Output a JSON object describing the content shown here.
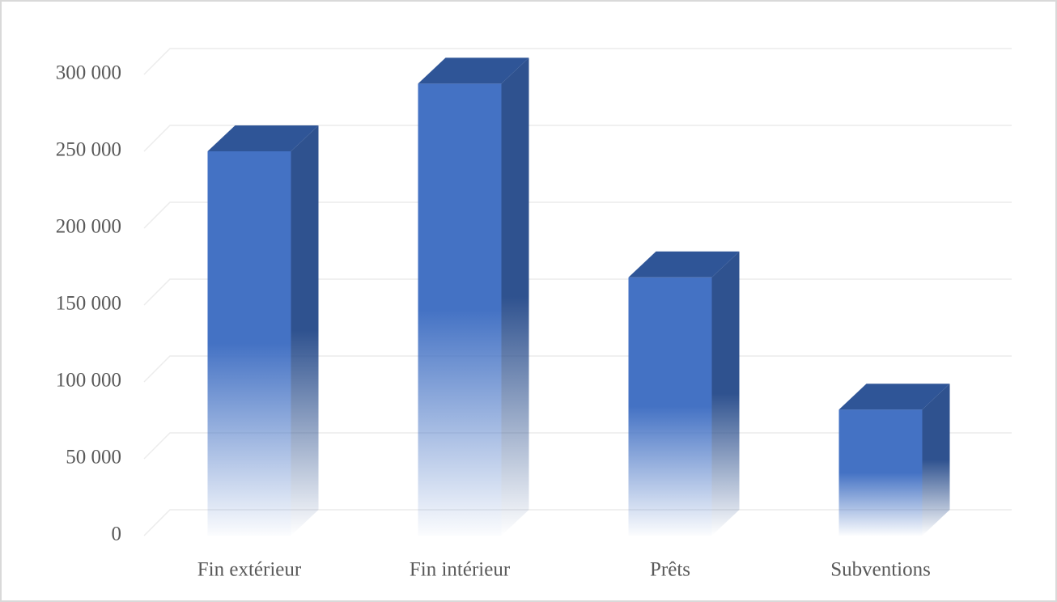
{
  "chart_data": {
    "type": "bar3d",
    "categories": [
      "Fin extérieur",
      "Fin intérieur",
      "Prêts",
      "Subventions"
    ],
    "values": [
      250000,
      294000,
      168000,
      82000
    ],
    "color": "#4472c4",
    "ylim": [
      0,
      300000
    ],
    "yticks": [
      {
        "value": 0,
        "label": "0"
      },
      {
        "value": 50000,
        "label": "50 000"
      },
      {
        "value": 100000,
        "label": "100 000"
      },
      {
        "value": 150000,
        "label": "150 000"
      },
      {
        "value": 200000,
        "label": "200 000"
      },
      {
        "value": 250000,
        "label": "250 000"
      },
      {
        "value": 300000,
        "label": "300 000"
      }
    ],
    "grid": true
  }
}
